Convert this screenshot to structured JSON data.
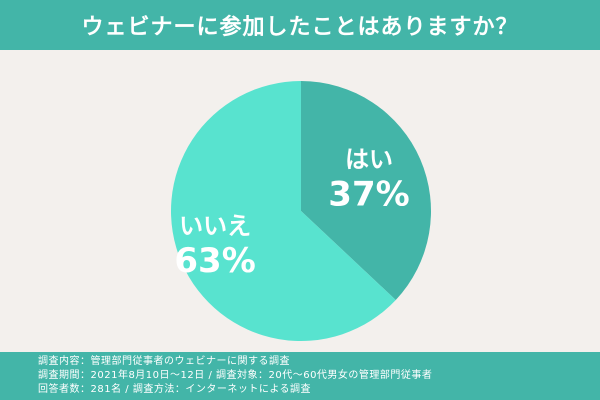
{
  "title": "ウェビナーに参加したことはありますか？",
  "colors": {
    "header_bg": "#43b5a8",
    "background": "#f3f0ed",
    "slice_yes": "#43b5a8",
    "slice_no": "#58e3cf"
  },
  "chart_data": {
    "type": "pie",
    "title": "ウェビナーに参加したことはありますか？",
    "slices": [
      {
        "label": "はい",
        "value": 37,
        "display": "37%",
        "color": "#43b5a8"
      },
      {
        "label": "いいえ",
        "value": 63,
        "display": "63%",
        "color": "#58e3cf"
      }
    ]
  },
  "footer": {
    "line1": "調査内容：管理部門従事者のウェビナーに関する調査",
    "line2": "調査期間：2021年8月10日〜12日 / 調査対象：20代〜60代男女の管理部門従事者",
    "line3": "回答者数：281名 / 調査方法：インターネットによる調査"
  }
}
